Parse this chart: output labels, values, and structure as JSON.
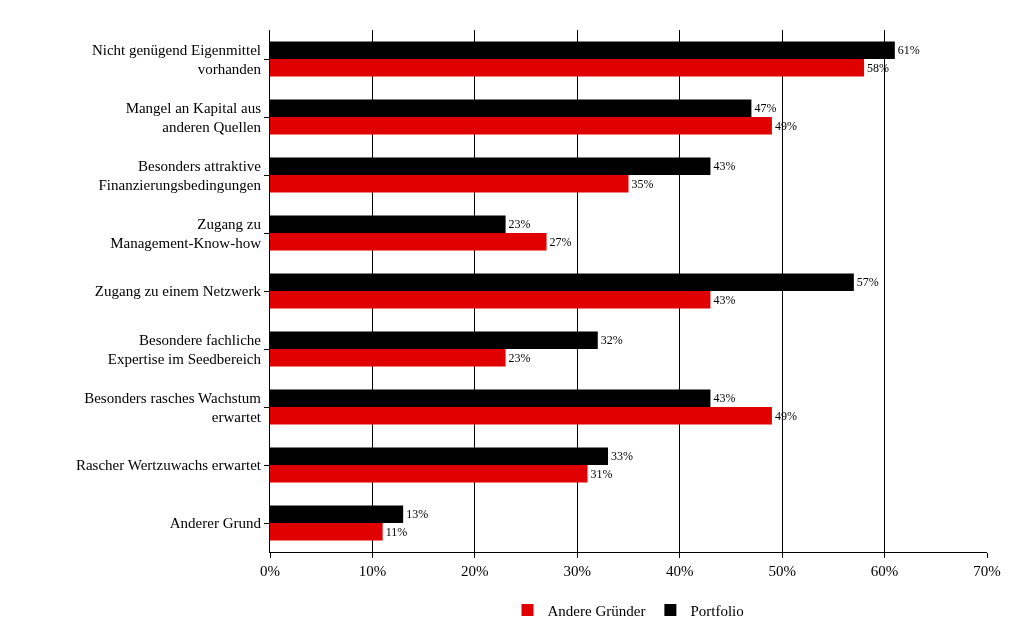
{
  "chart_data": {
    "type": "bar",
    "orientation": "horizontal",
    "categories": [
      "Nicht genügend Eigenmittel vorhanden",
      "Mangel an Kapital aus anderen Quellen",
      "Besonders attraktive Finanzierungsbedingungen",
      "Zugang zu Management-Know-how",
      "Zugang zu einem Netzwerk",
      "Besondere fachliche Expertise im Seedbereich",
      "Besonders rasches Wachstum erwartet",
      "Rascher Wertzuwachs erwartet",
      "Anderer Grund"
    ],
    "series": [
      {
        "name": "Portfolio",
        "color": "#000000",
        "values": [
          61,
          47,
          43,
          23,
          57,
          32,
          43,
          33,
          13
        ],
        "value_labels": [
          "61%",
          "47%",
          "43%",
          "23%",
          "57%",
          "32%",
          "43%",
          "33%",
          "13%"
        ]
      },
      {
        "name": "Andere Gründer",
        "color": "#e00000",
        "values": [
          58,
          49,
          35,
          27,
          43,
          23,
          49,
          31,
          11
        ],
        "value_labels": [
          "58%",
          "49%",
          "35%",
          "27%",
          "43%",
          "23%",
          "49%",
          "31%",
          "11%"
        ]
      }
    ],
    "xlim": [
      0,
      70
    ],
    "xticks": [
      {
        "value": 0,
        "label": "0%"
      },
      {
        "value": 10,
        "label": "10%"
      },
      {
        "value": 20,
        "label": "20%"
      },
      {
        "value": 30,
        "label": "30%"
      },
      {
        "value": 40,
        "label": "40%"
      },
      {
        "value": 50,
        "label": "50%"
      },
      {
        "value": 60,
        "label": "60%"
      },
      {
        "value": 70,
        "label": "70%"
      }
    ],
    "grid": "x",
    "legend": "bottom"
  }
}
